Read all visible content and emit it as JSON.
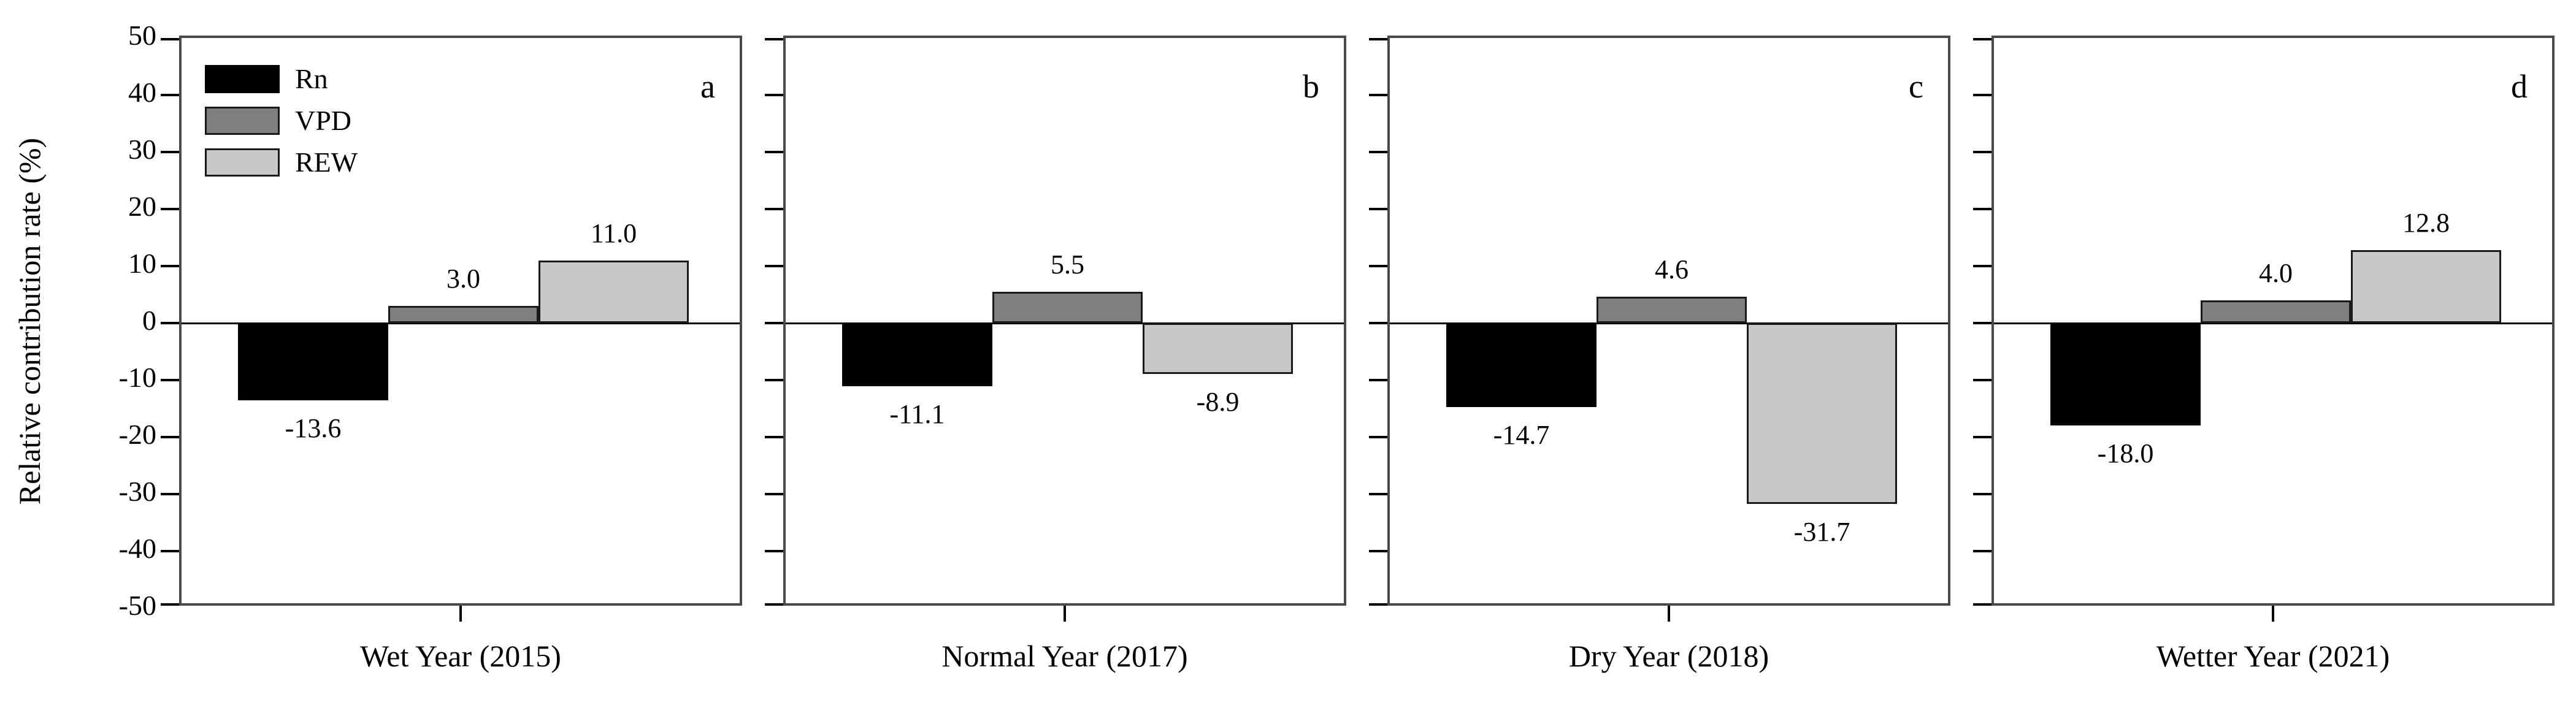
{
  "figure": {
    "y_axis_title": "Relative contribution rate (%)",
    "background_color": "#ffffff",
    "axis_color": "#000000",
    "panel_border_color": "#4a4a4a"
  },
  "legend": {
    "items": [
      {
        "label": "Rn",
        "color": "#000000",
        "border": "#000000"
      },
      {
        "label": "VPD",
        "color": "#7f7f7f",
        "border": "#1a1a1a"
      },
      {
        "label": "REW",
        "color": "#c8c8c8",
        "border": "#1a1a1a"
      }
    ]
  },
  "chart_data": {
    "type": "bar",
    "title": "",
    "ylabel": "Relative contribution rate (%)",
    "xlabel": "",
    "ylim": [
      -50,
      50
    ],
    "ytick_step": 10,
    "yticks": [
      50,
      40,
      30,
      20,
      10,
      0,
      -10,
      -20,
      -30,
      -40,
      -50
    ],
    "grid": false,
    "legend_position": "upper-left of panel a",
    "series_names": [
      "Rn",
      "VPD",
      "REW"
    ],
    "series_colors": {
      "Rn": "#000000",
      "VPD": "#7f7f7f",
      "REW": "#c8c8c8"
    },
    "panels": [
      {
        "letter": "a",
        "category": "Wet Year (2015)",
        "values": {
          "Rn": -13.6,
          "VPD": 3.0,
          "REW": 11.0
        },
        "value_labels": {
          "Rn": "-13.6",
          "VPD": "3.0",
          "REW": "11.0"
        }
      },
      {
        "letter": "b",
        "category": "Normal Year (2017)",
        "values": {
          "Rn": -11.1,
          "VPD": 5.5,
          "REW": -8.9
        },
        "value_labels": {
          "Rn": "-11.1",
          "VPD": "5.5",
          "REW": "-8.9"
        }
      },
      {
        "letter": "c",
        "category": "Dry Year (2018)",
        "values": {
          "Rn": -14.7,
          "VPD": 4.6,
          "REW": -31.7
        },
        "value_labels": {
          "Rn": "-14.7",
          "VPD": "4.6",
          "REW": "-31.7"
        }
      },
      {
        "letter": "d",
        "category": "Wetter Year (2021)",
        "values": {
          "Rn": -18.0,
          "VPD": 4.0,
          "REW": 12.8
        },
        "value_labels": {
          "Rn": "-18.0",
          "VPD": "4.0",
          "REW": "12.8"
        }
      }
    ]
  }
}
